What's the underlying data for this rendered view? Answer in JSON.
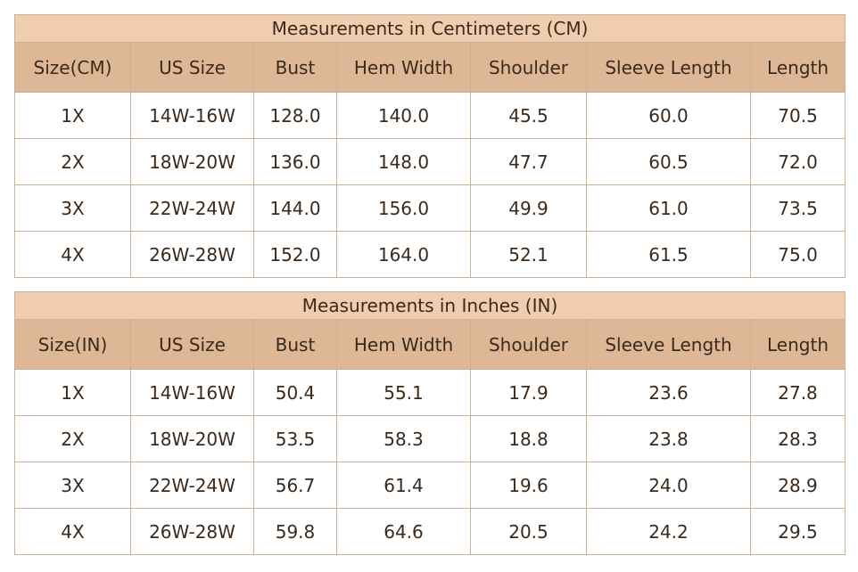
{
  "tables": [
    {
      "title": "Measurements in Centimeters (CM)",
      "header": [
        "Size(CM)",
        "US Size",
        "Bust",
        "Hem Width",
        "Shoulder",
        "Sleeve Length",
        "Length"
      ],
      "rows": [
        [
          "1X",
          "14W-16W",
          "128.0",
          "140.0",
          "45.5",
          "60.0",
          "70.5"
        ],
        [
          "2X",
          "18W-20W",
          "136.0",
          "148.0",
          "47.7",
          "60.5",
          "72.0"
        ],
        [
          "3X",
          "22W-24W",
          "144.0",
          "156.0",
          "49.9",
          "61.0",
          "73.5"
        ],
        [
          "4X",
          "26W-28W",
          "152.0",
          "164.0",
          "52.1",
          "61.5",
          "75.0"
        ]
      ]
    },
    {
      "title": "Measurements in Inches (IN)",
      "header": [
        "Size(IN)",
        "US Size",
        "Bust",
        "Hem Width",
        "Shoulder",
        "Sleeve Length",
        "Length"
      ],
      "rows": [
        [
          "1X",
          "14W-16W",
          "50.4",
          "55.1",
          "17.9",
          "23.6",
          "27.8"
        ],
        [
          "2X",
          "18W-20W",
          "53.5",
          "58.3",
          "18.8",
          "23.8",
          "28.3"
        ],
        [
          "3X",
          "22W-24W",
          "56.7",
          "61.4",
          "19.6",
          "24.0",
          "28.9"
        ],
        [
          "4X",
          "26W-28W",
          "59.8",
          "64.6",
          "20.5",
          "24.2",
          "29.5"
        ]
      ]
    }
  ]
}
